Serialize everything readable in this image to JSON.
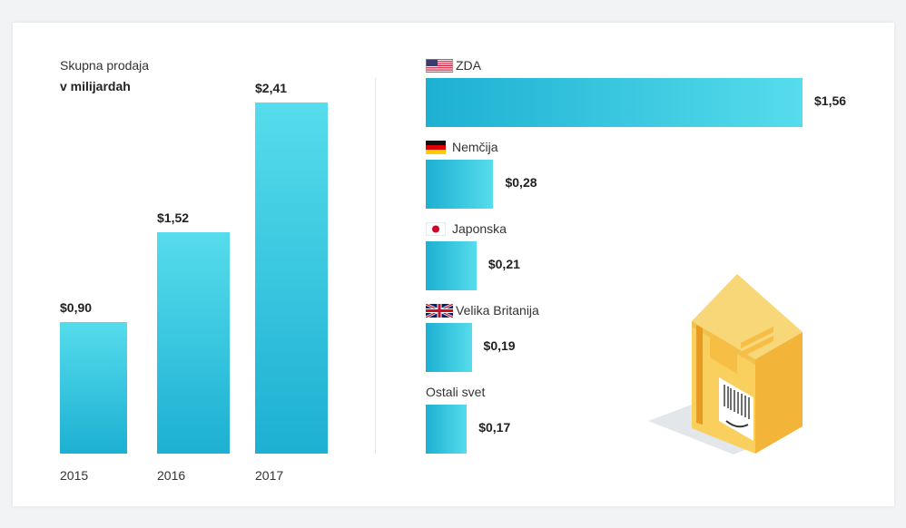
{
  "left_chart": {
    "title_line1": "Skupna prodaja",
    "title_line2": "v milijardah"
  },
  "right_chart": {},
  "chart_data": [
    {
      "type": "bar",
      "orientation": "vertical",
      "title": "Skupna prodaja v milijardah",
      "categories": [
        "2015",
        "2016",
        "2017"
      ],
      "values": [
        0.9,
        1.52,
        2.41
      ],
      "value_labels": [
        "$0,90",
        "$1,52",
        "$2,41"
      ],
      "ylim": [
        0,
        2.41
      ],
      "grid": false,
      "colors": {
        "bar_top": "#56dcec",
        "bar_bottom": "#1cb0d2"
      }
    },
    {
      "type": "bar",
      "orientation": "horizontal",
      "categories": [
        "ZDA",
        "Nemčija",
        "Japonska",
        "Velika Britanija",
        "Ostali svet"
      ],
      "values": [
        1.56,
        0.28,
        0.21,
        0.19,
        0.17
      ],
      "value_labels": [
        "$1,56",
        "$0,28",
        "$0,21",
        "$0,19",
        "$0,17"
      ],
      "flags": [
        "us-flag-icon",
        "germany-flag-icon",
        "japan-flag-icon",
        "uk-flag-icon",
        null
      ],
      "xlim": [
        0,
        1.56
      ],
      "grid": false,
      "colors": {
        "bar_left": "#1cb0d2",
        "bar_right": "#56dcec"
      }
    }
  ],
  "illustration": {
    "name": "package-box-icon",
    "colors": {
      "front": "#f8cd5b",
      "side": "#eb9920",
      "top": "#f6c64b",
      "shadow": "#e3e6e8"
    }
  }
}
